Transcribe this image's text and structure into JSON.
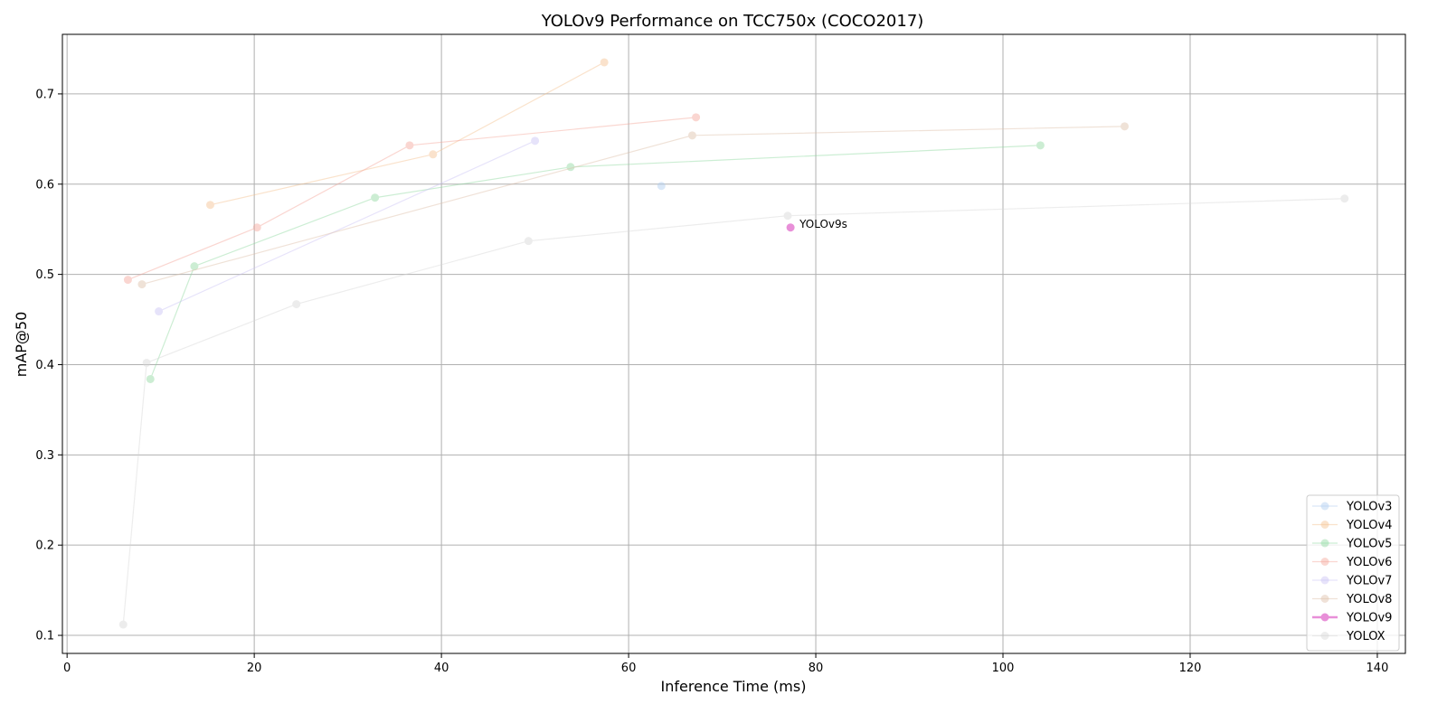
{
  "chart_data": {
    "type": "line",
    "title": "YOLOv9 Performance on TCC750x (COCO2017)",
    "xlabel": "Inference Time (ms)",
    "ylabel": "mAP@50",
    "xlim": [
      -0.5,
      143
    ],
    "ylim": [
      0.08,
      0.766
    ],
    "xticks": [
      0,
      20,
      40,
      60,
      80,
      100,
      120,
      140
    ],
    "yticks": [
      0.1,
      0.2,
      0.3,
      0.4,
      0.5,
      0.6,
      0.7
    ],
    "grid": true,
    "legend_position": "lower-right",
    "series": [
      {
        "name": "YOLOv3",
        "color": "#aecbf0",
        "alpha": 0.45,
        "points": [
          [
            63.5,
            0.598
          ]
        ]
      },
      {
        "name": "YOLOv4",
        "color": "#f5c18f",
        "alpha": 0.45,
        "points": [
          [
            15.3,
            0.577
          ],
          [
            39.1,
            0.633
          ],
          [
            57.4,
            0.735
          ]
        ]
      },
      {
        "name": "YOLOv5",
        "color": "#8fd9a0",
        "alpha": 0.45,
        "points": [
          [
            8.9,
            0.384
          ],
          [
            13.6,
            0.509
          ],
          [
            32.9,
            0.585
          ],
          [
            53.8,
            0.619
          ],
          [
            104.0,
            0.643
          ]
        ]
      },
      {
        "name": "YOLOv6",
        "color": "#f5a69a",
        "alpha": 0.45,
        "points": [
          [
            6.5,
            0.494
          ],
          [
            20.3,
            0.552
          ],
          [
            36.6,
            0.643
          ],
          [
            67.2,
            0.674
          ]
        ]
      },
      {
        "name": "YOLOv7",
        "color": "#c9c2f5",
        "alpha": 0.45,
        "points": [
          [
            9.8,
            0.459
          ],
          [
            50.0,
            0.648
          ]
        ]
      },
      {
        "name": "YOLOv8",
        "color": "#ddbfa8",
        "alpha": 0.45,
        "points": [
          [
            8.0,
            0.489
          ],
          [
            66.8,
            0.654
          ],
          [
            113.0,
            0.664
          ]
        ]
      },
      {
        "name": "YOLOv9",
        "color": "#e88fd8",
        "alpha": 1.0,
        "points": [
          [
            77.3,
            0.552
          ]
        ]
      },
      {
        "name": "YOLOX",
        "color": "#d7d7d7",
        "alpha": 0.45,
        "points": [
          [
            6.0,
            0.112
          ],
          [
            8.5,
            0.402
          ],
          [
            24.5,
            0.467
          ],
          [
            49.3,
            0.537
          ],
          [
            77.0,
            0.565
          ],
          [
            136.5,
            0.584
          ]
        ]
      }
    ],
    "annotations": [
      {
        "text": "YOLOv9s",
        "x": 77.3,
        "y": 0.552
      }
    ]
  }
}
